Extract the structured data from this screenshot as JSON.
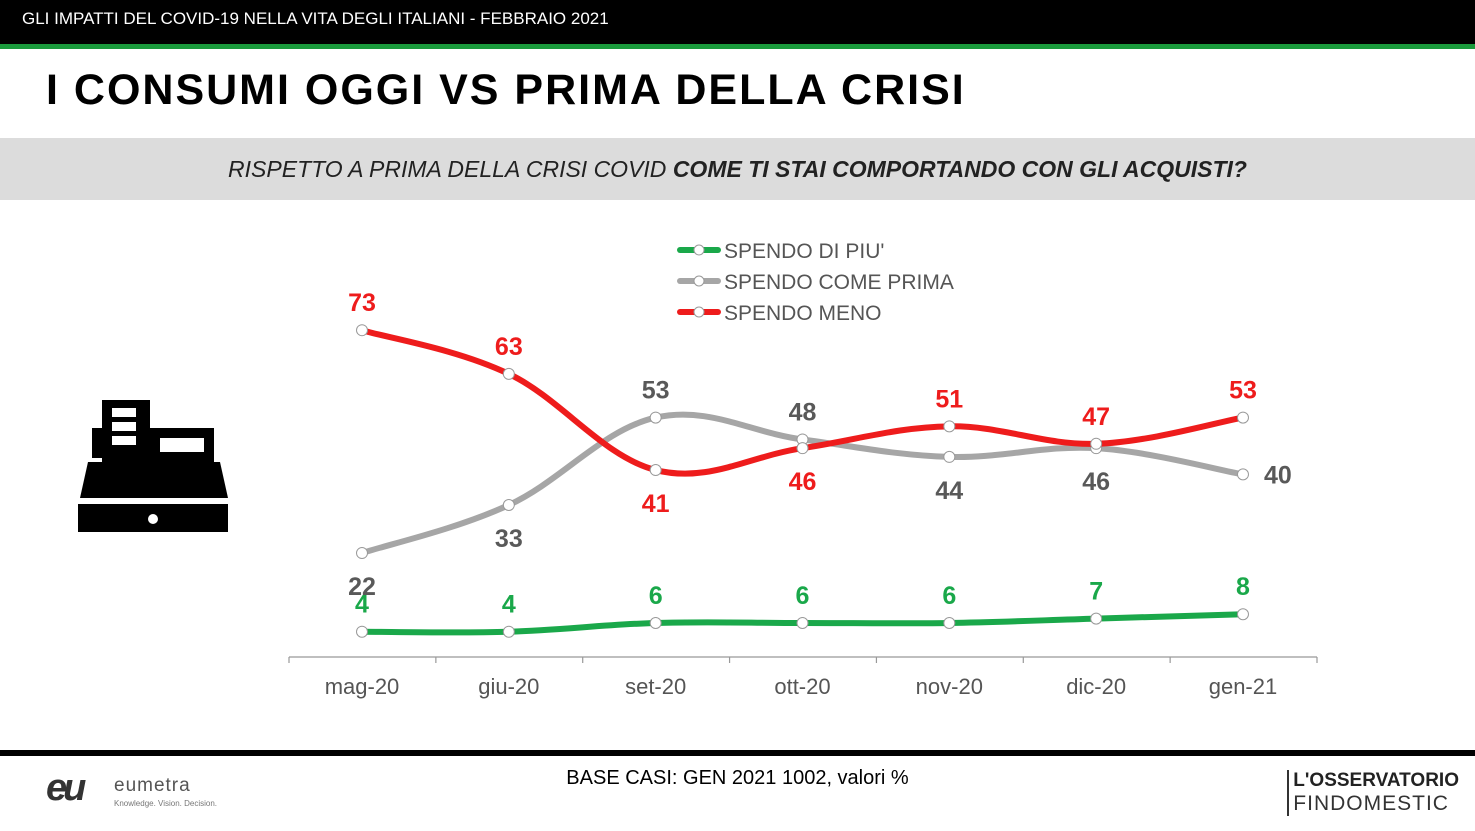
{
  "header": {
    "title": "GLI IMPATTI DEL COVID-19 NELLA VITA DEGLI ITALIANI - FEBBRAIO 2021"
  },
  "slide": {
    "title": "I CONSUMI OGGI VS PRIMA DELLA CRISI",
    "question_normal": "RISPETTO A PRIMA DELLA CRISI COVID ",
    "question_bold": "COME TI STAI COMPORTANDO CON GLI ACQUISTI?"
  },
  "footer": {
    "base": "BASE CASI: GEN 2021 1002, valori %",
    "logo_left_mark": "eu",
    "logo_left_name": "eumetra",
    "logo_left_tagline": "Knowledge. Vision. Decision.",
    "logo_right_line1": "L'OSSERVATORIO",
    "logo_right_line2": "FINDOMESTIC"
  },
  "icon": "cash-register-icon",
  "colors": {
    "green": "#1aa84a",
    "gray": "#a6a6a6",
    "red": "#ee1c1c",
    "gray_label": "#595959",
    "stripe": "#1a9b3c"
  },
  "chart_data": {
    "type": "line",
    "categories": [
      "mag-20",
      "giu-20",
      "set-20",
      "ott-20",
      "nov-20",
      "dic-20",
      "gen-21"
    ],
    "ylim": [
      0,
      80
    ],
    "legend_position": "top",
    "series": [
      {
        "name": "SPENDO DI PIU'",
        "color": "#1aa84a",
        "label_color": "#1aa84a",
        "values": [
          4,
          4,
          6,
          6,
          6,
          7,
          8
        ]
      },
      {
        "name": "SPENDO COME PRIMA",
        "color": "#a6a6a6",
        "label_color": "#595959",
        "values": [
          22,
          33,
          53,
          48,
          44,
          46,
          40
        ]
      },
      {
        "name": "SPENDO MENO",
        "color": "#ee1c1c",
        "label_color": "#ee1c1c",
        "values": [
          73,
          63,
          41,
          46,
          51,
          47,
          53
        ]
      }
    ]
  }
}
